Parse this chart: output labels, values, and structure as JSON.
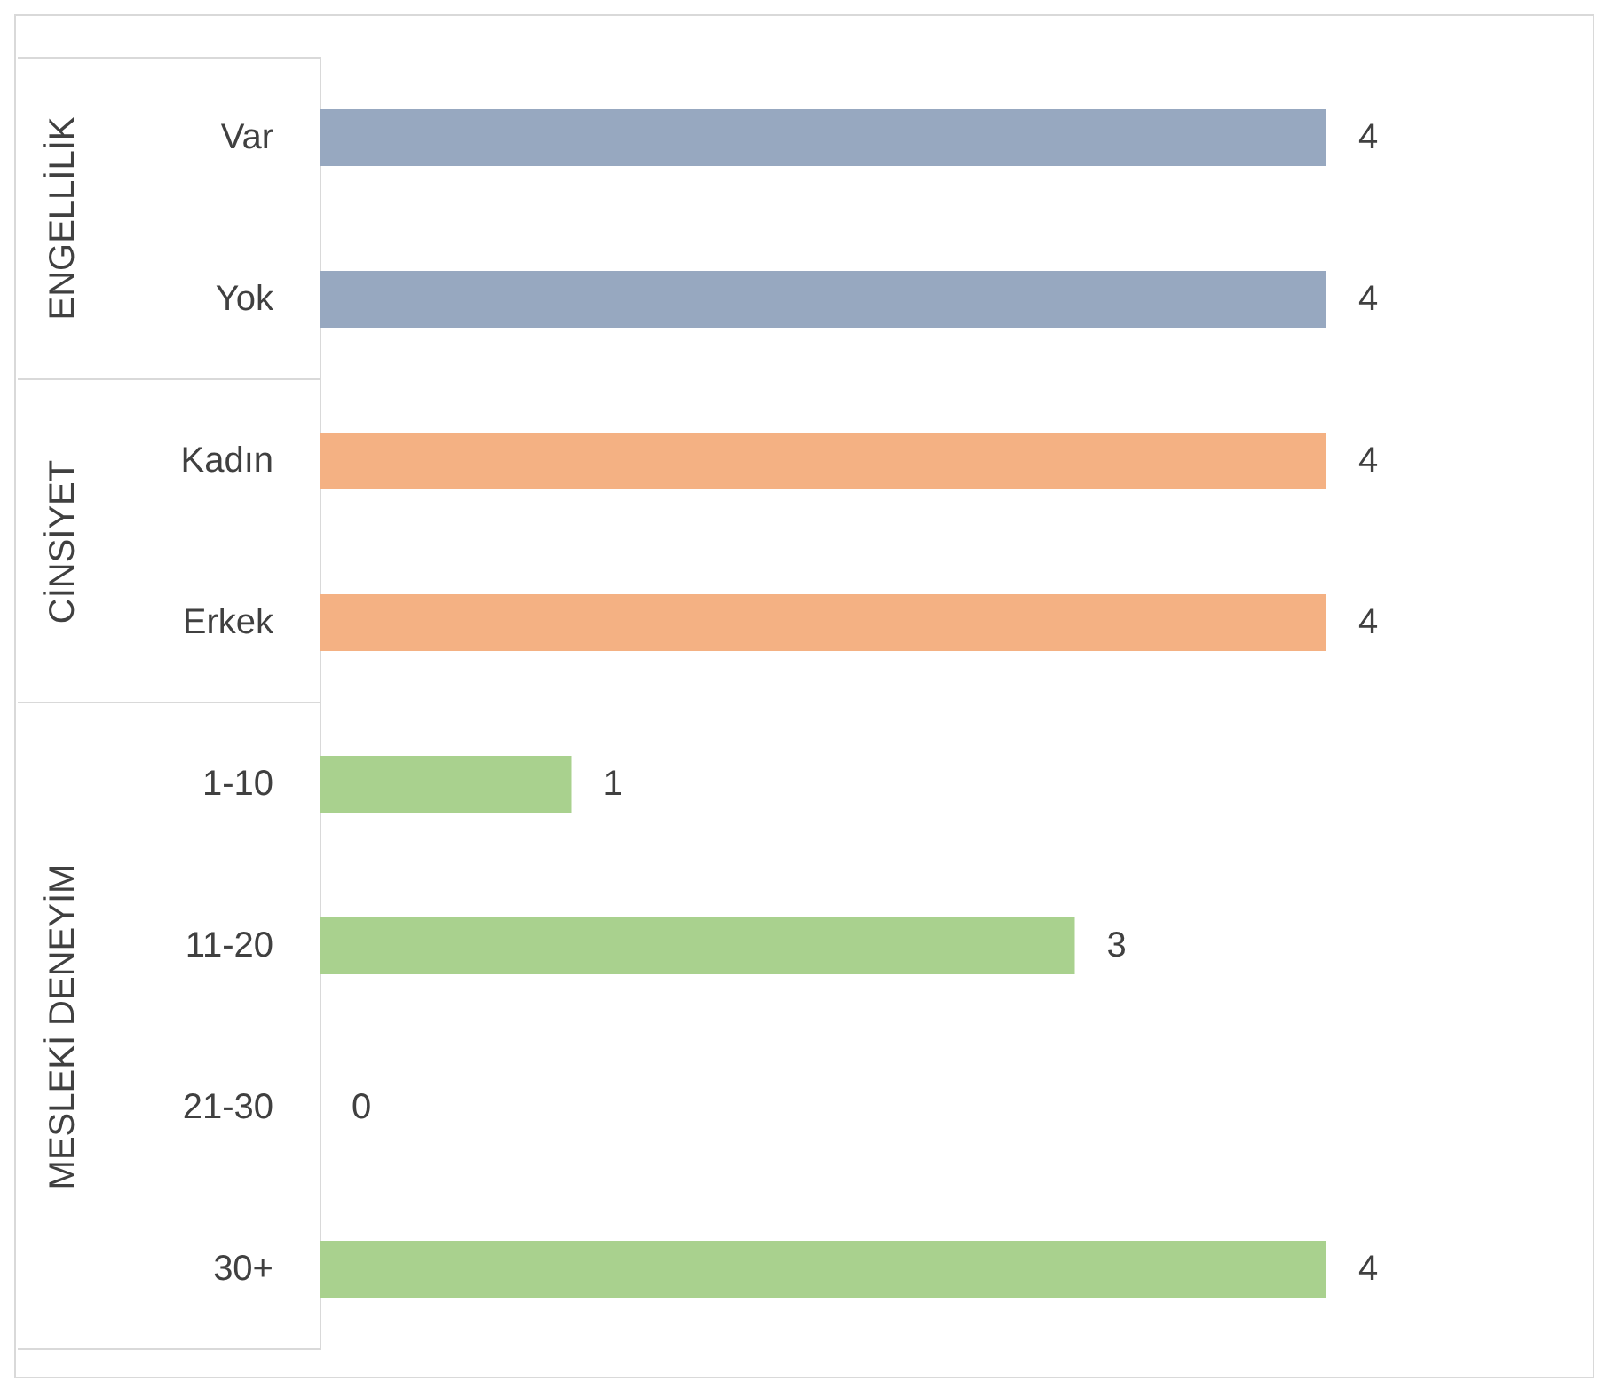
{
  "chart_data": {
    "type": "bar",
    "orientation": "horizontal",
    "categories": [
      "Var",
      "Yok",
      "Kadın",
      "Erkek",
      "1-10",
      "11-20",
      "21-30",
      "30+"
    ],
    "series": [
      {
        "color": "#97a8c0",
        "values": [
          4,
          4,
          null,
          null,
          null,
          null,
          null,
          null
        ]
      },
      {
        "color": "#f4b183",
        "values": [
          null,
          null,
          4,
          4,
          null,
          null,
          null,
          null
        ]
      },
      {
        "color": "#a9d18e",
        "values": [
          null,
          null,
          null,
          null,
          1,
          3,
          0,
          4
        ]
      }
    ],
    "annotations": [
      "ENGELLİLİK",
      "CİNSİYET",
      "MESLEKİ DENEYİM"
    ],
    "data_labels": true
  }
}
